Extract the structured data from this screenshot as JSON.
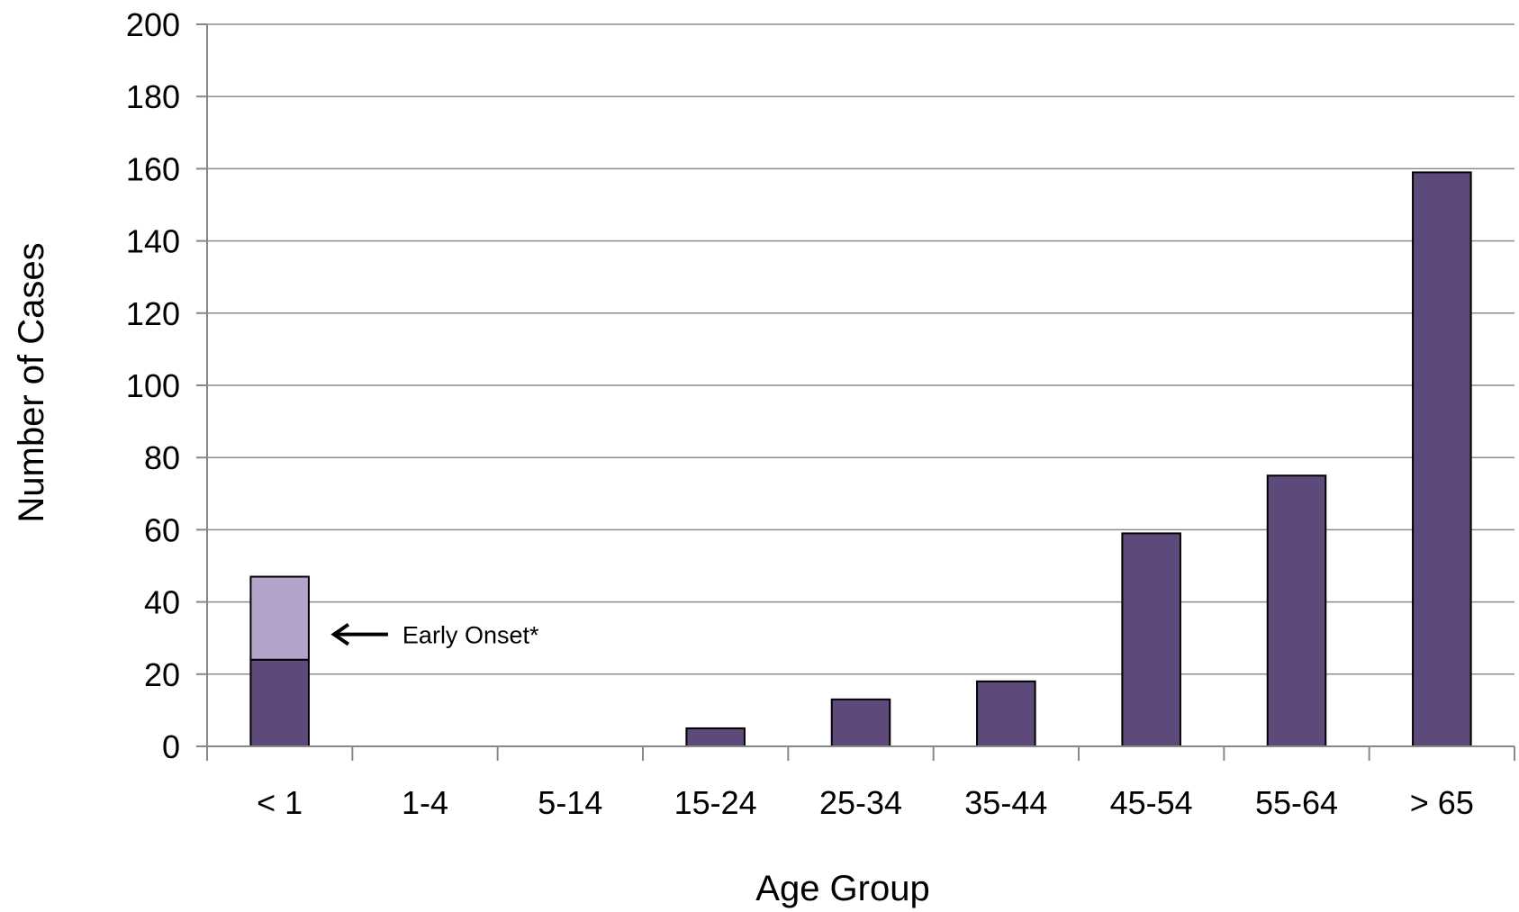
{
  "chart_data": {
    "type": "bar",
    "stacked": true,
    "categories": [
      "< 1",
      "1-4",
      "5-14",
      "15-24",
      "25-34",
      "35-44",
      "45-54",
      "55-64",
      "> 65"
    ],
    "series": [
      {
        "values": [
          24,
          0,
          0,
          5,
          13,
          18,
          59,
          75,
          159
        ],
        "color": "#5e4a7a"
      },
      {
        "values": [
          23,
          0,
          0,
          0,
          0,
          0,
          0,
          0,
          0
        ],
        "color": "#b1a3c9"
      }
    ],
    "title": "",
    "xlabel": "Age Group",
    "ylabel": "Number of Cases",
    "ylim": [
      0,
      200
    ],
    "yticks": [
      0,
      20,
      40,
      60,
      80,
      100,
      120,
      140,
      160,
      180,
      200
    ],
    "grid": true,
    "annotation": {
      "text": "Early Onset*",
      "category": "< 1",
      "series": 1
    }
  }
}
